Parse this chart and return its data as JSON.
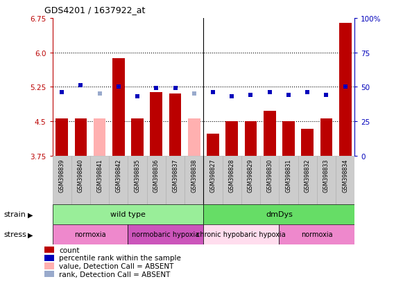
{
  "title": "GDS4201 / 1637922_at",
  "samples": [
    "GSM398839",
    "GSM398840",
    "GSM398841",
    "GSM398842",
    "GSM398835",
    "GSM398836",
    "GSM398837",
    "GSM398838",
    "GSM398827",
    "GSM398828",
    "GSM398829",
    "GSM398830",
    "GSM398831",
    "GSM398832",
    "GSM398833",
    "GSM398834"
  ],
  "count_values": [
    4.56,
    4.56,
    4.56,
    5.88,
    4.56,
    5.13,
    5.1,
    4.56,
    4.22,
    4.5,
    4.5,
    4.72,
    4.5,
    4.34,
    4.56,
    6.65
  ],
  "rank_values": [
    46,
    51,
    45,
    50,
    43,
    49,
    49,
    45,
    46,
    43,
    44,
    46,
    44,
    46,
    44,
    50
  ],
  "absent_mask_bar": [
    false,
    false,
    true,
    false,
    false,
    false,
    false,
    true,
    false,
    false,
    false,
    false,
    false,
    false,
    false,
    false
  ],
  "absent_mask_rank": [
    false,
    false,
    true,
    false,
    false,
    false,
    false,
    true,
    false,
    false,
    false,
    false,
    false,
    false,
    false,
    false
  ],
  "ylim_left": [
    3.75,
    6.75
  ],
  "ylim_right": [
    0,
    100
  ],
  "yticks_left": [
    3.75,
    4.5,
    5.25,
    6.0,
    6.75
  ],
  "yticks_right": [
    0,
    25,
    50,
    75,
    100
  ],
  "hlines": [
    4.5,
    5.25,
    6.0
  ],
  "bar_color": "#bb0000",
  "bar_absent_color": "#ffb0b0",
  "rank_color": "#0000bb",
  "rank_absent_color": "#99aacc",
  "strain_groups": [
    {
      "label": "wild type",
      "start": 0,
      "end": 8,
      "color": "#99ee99"
    },
    {
      "label": "dmDys",
      "start": 8,
      "end": 16,
      "color": "#66dd66"
    }
  ],
  "stress_groups": [
    {
      "label": "normoxia",
      "start": 0,
      "end": 4,
      "color": "#ee88cc"
    },
    {
      "label": "normobaric hypoxia",
      "start": 4,
      "end": 8,
      "color": "#cc55bb"
    },
    {
      "label": "chronic hypobaric hypoxia",
      "start": 8,
      "end": 12,
      "color": "#ffddee"
    },
    {
      "label": "normoxia",
      "start": 12,
      "end": 16,
      "color": "#ee88cc"
    }
  ],
  "legend_items": [
    {
      "label": "count",
      "color": "#bb0000"
    },
    {
      "label": "percentile rank within the sample",
      "color": "#0000bb"
    },
    {
      "label": "value, Detection Call = ABSENT",
      "color": "#ffb0b0"
    },
    {
      "label": "rank, Detection Call = ABSENT",
      "color": "#99aacc"
    }
  ]
}
